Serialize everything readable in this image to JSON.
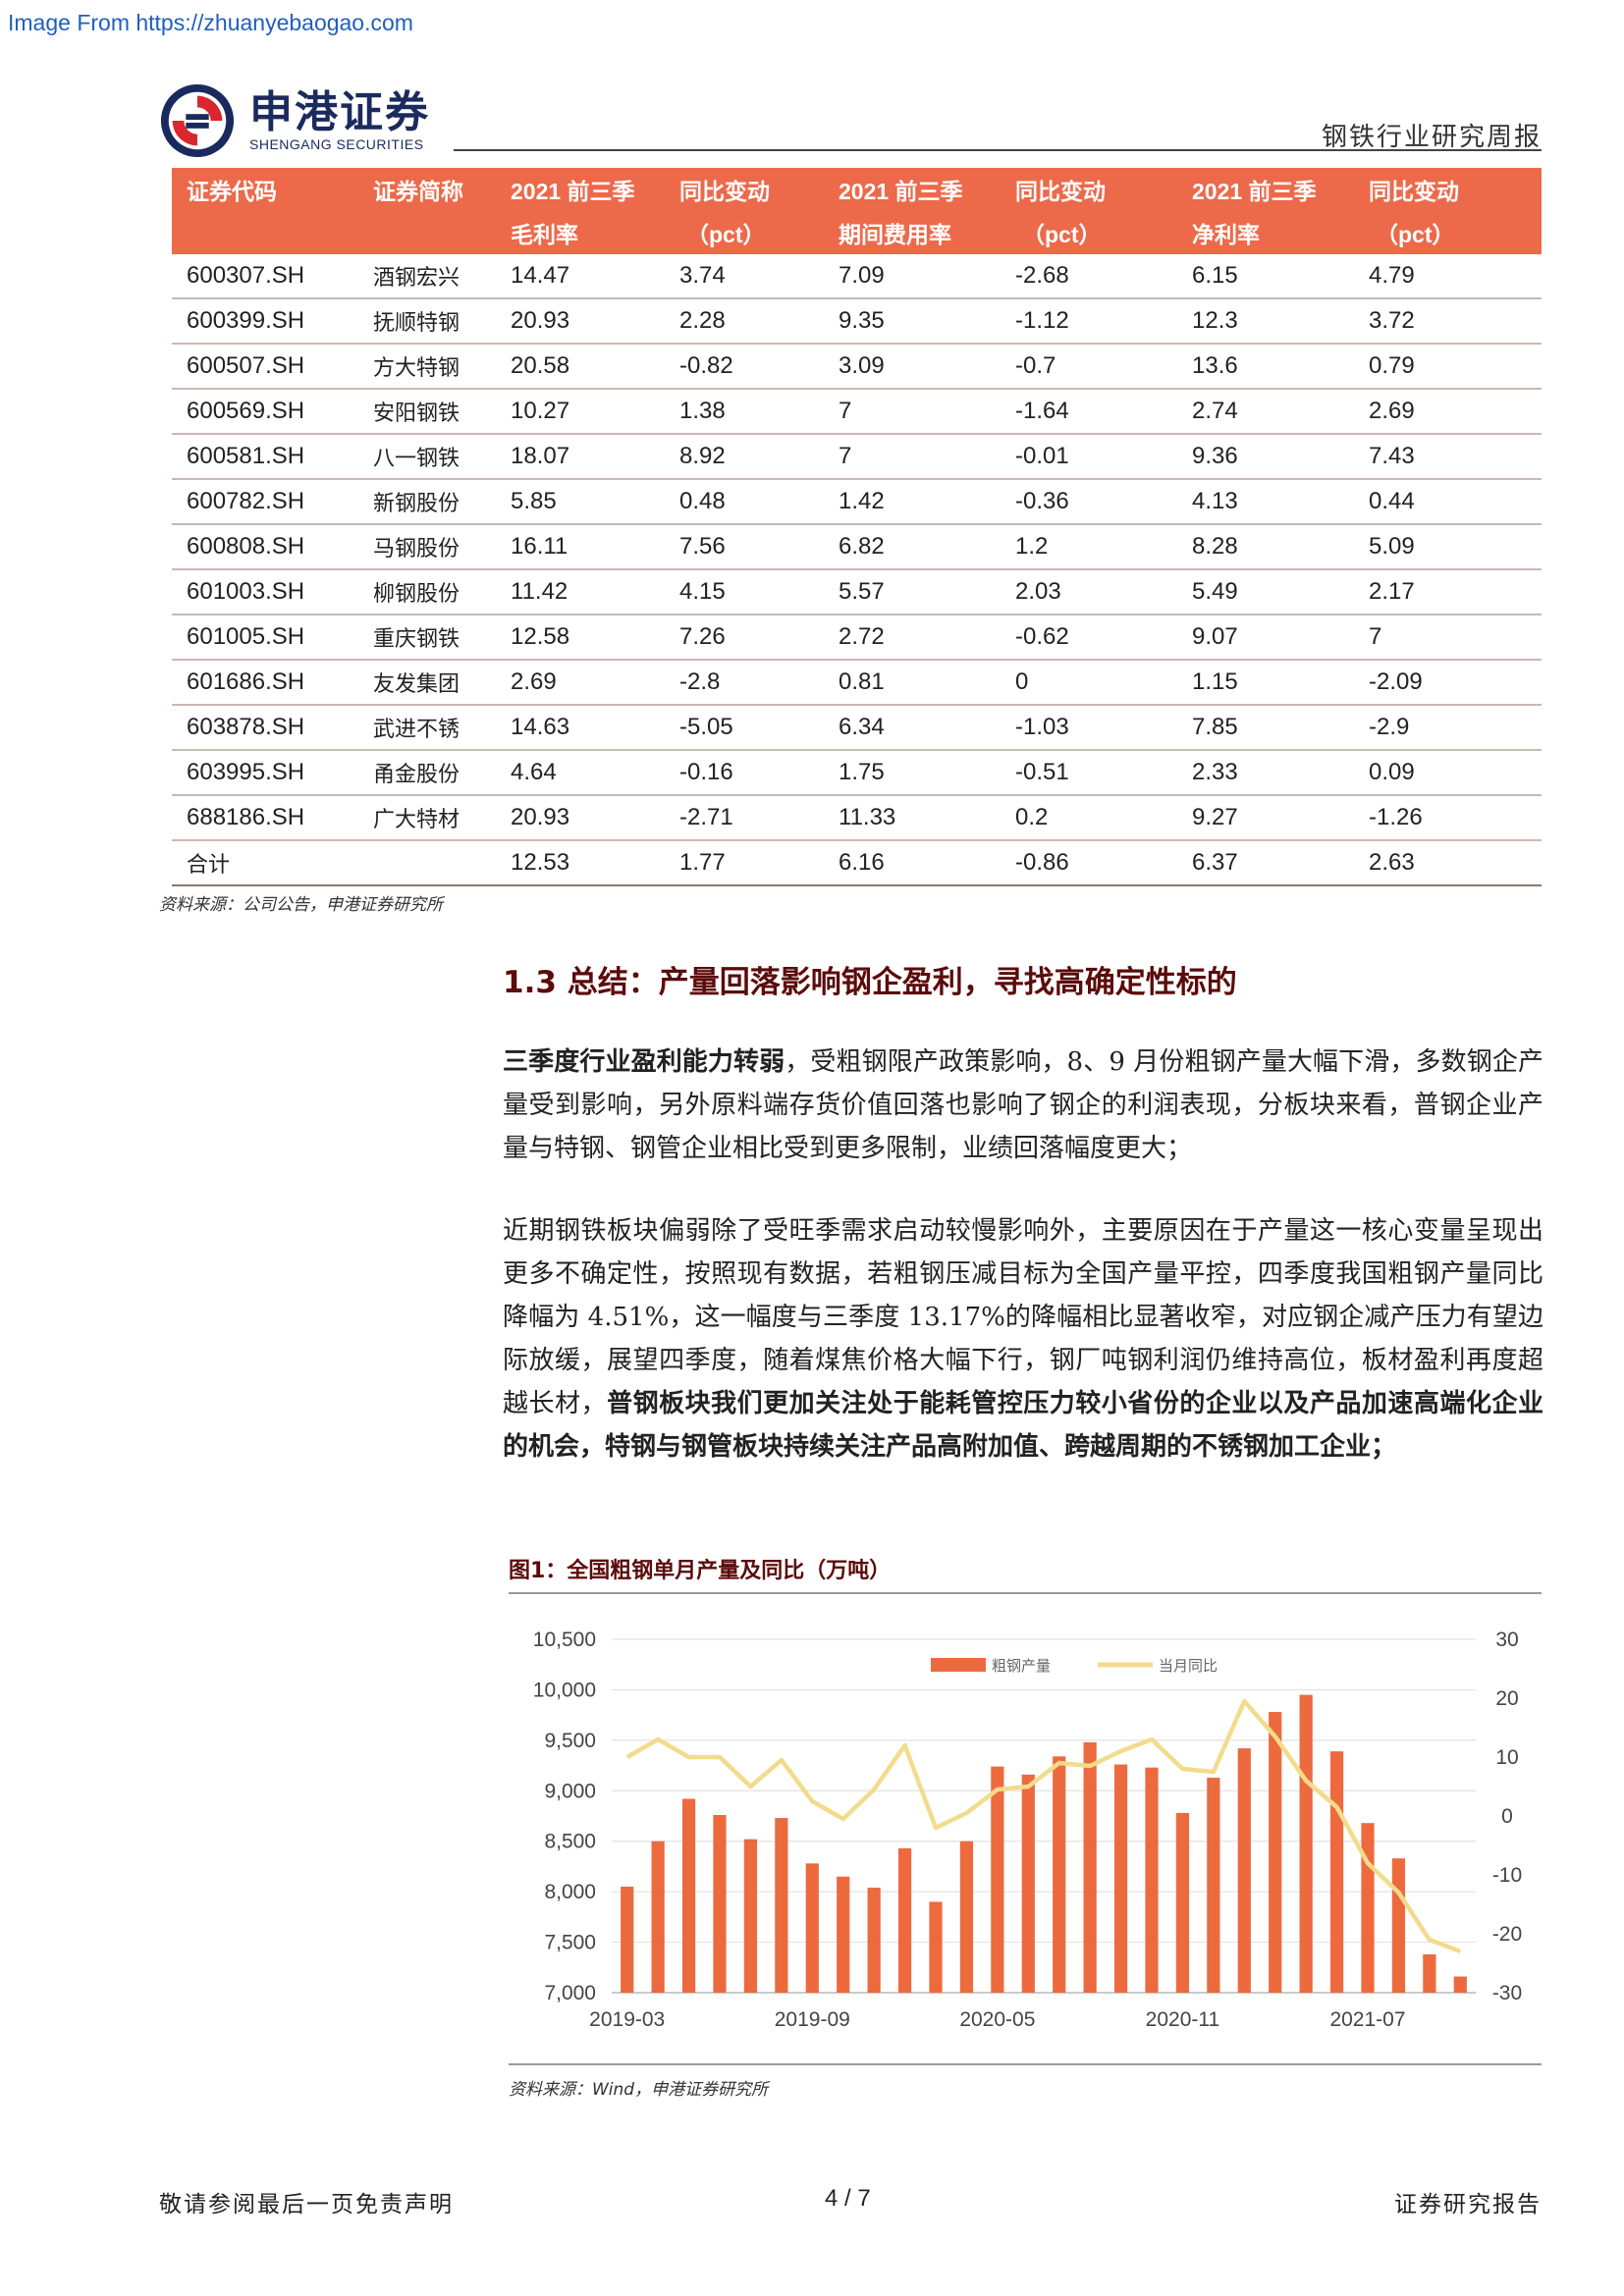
{
  "watermark": "Image From https://zhuanyebaogao.com",
  "header": {
    "brand_cn": "申港证券",
    "brand_en": "SHENGANG SECURITIES",
    "report_type": "钢铁行业研究周报"
  },
  "table": {
    "header_row1": [
      "证券代码",
      "证券简称",
      "2021 前三季",
      "同比变动",
      "2021 前三季",
      "同比变动",
      "2021 前三季",
      "同比变动"
    ],
    "header_row2": [
      "",
      "",
      "毛利率",
      "（pct）",
      "期间费用率",
      "（pct）",
      "净利率",
      "（pct）"
    ],
    "rows": [
      [
        "600307.SH",
        "酒钢宏兴",
        "14.47",
        "3.74",
        "7.09",
        "-2.68",
        "6.15",
        "4.79"
      ],
      [
        "600399.SH",
        "抚顺特钢",
        "20.93",
        "2.28",
        "9.35",
        "-1.12",
        "12.3",
        "3.72"
      ],
      [
        "600507.SH",
        "方大特钢",
        "20.58",
        "-0.82",
        "3.09",
        "-0.7",
        "13.6",
        "0.79"
      ],
      [
        "600569.SH",
        "安阳钢铁",
        "10.27",
        "1.38",
        "7",
        "-1.64",
        "2.74",
        "2.69"
      ],
      [
        "600581.SH",
        "八一钢铁",
        "18.07",
        "8.92",
        "7",
        "-0.01",
        "9.36",
        "7.43"
      ],
      [
        "600782.SH",
        "新钢股份",
        "5.85",
        "0.48",
        "1.42",
        "-0.36",
        "4.13",
        "0.44"
      ],
      [
        "600808.SH",
        "马钢股份",
        "16.11",
        "7.56",
        "6.82",
        "1.2",
        "8.28",
        "5.09"
      ],
      [
        "601003.SH",
        "柳钢股份",
        "11.42",
        "4.15",
        "5.57",
        "2.03",
        "5.49",
        "2.17"
      ],
      [
        "601005.SH",
        "重庆钢铁",
        "12.58",
        "7.26",
        "2.72",
        "-0.62",
        "9.07",
        "7"
      ],
      [
        "601686.SH",
        "友发集团",
        "2.69",
        "-2.8",
        "0.81",
        "0",
        "1.15",
        "-2.09"
      ],
      [
        "603878.SH",
        "武进不锈",
        "14.63",
        "-5.05",
        "6.34",
        "-1.03",
        "7.85",
        "-2.9"
      ],
      [
        "603995.SH",
        "甬金股份",
        "4.64",
        "-0.16",
        "1.75",
        "-0.51",
        "2.33",
        "0.09"
      ],
      [
        "688186.SH",
        "广大特材",
        "20.93",
        "-2.71",
        "11.33",
        "0.2",
        "9.27",
        "-1.26"
      ],
      [
        "合计",
        "",
        "12.53",
        "1.77",
        "6.16",
        "-0.86",
        "6.37",
        "2.63"
      ]
    ]
  },
  "table_source": "资料来源：公司公告，申港证券研究所",
  "section": {
    "title": "1.3 总结：产量回落影响钢企盈利，寻找高确定性标的",
    "p1_bold": "三季度行业盈利能力转弱",
    "p1_rest": "，受粗钢限产政策影响，8、9 月份粗钢产量大幅下滑，多数钢企产量受到影响，另外原料端存货价值回落也影响了钢企的利润表现，分板块来看，普钢企业产量与特钢、钢管企业相比受到更多限制，业绩回落幅度更大；",
    "p2_normal": "近期钢铁板块偏弱除了受旺季需求启动较慢影响外，主要原因在于产量这一核心变量呈现出更多不确定性，按照现有数据，若粗钢压减目标为全国产量平控，四季度我国粗钢产量同比降幅为 4.51%，这一幅度与三季度 13.17%的降幅相比显著收窄，对应钢企减产压力有望边际放缓，展望四季度，随着煤焦价格大幅下行，钢厂吨钢利润仍维持高位，板材盈利再度超越长材，",
    "p2_bold": "普钢板块我们更加关注处于能耗管控压力较小省份的企业以及产品加速高端化企业的机会，特钢与钢管板块持续关注产品高附加值、跨越周期的不锈钢加工企业；"
  },
  "figure": {
    "title": "图1：全国粗钢单月产量及同比（万吨）",
    "source": "资料来源：Wind，申港证券研究所"
  },
  "chart_data": {
    "type": "bar+line",
    "x": [
      "2019-03",
      "2019-04",
      "2019-05",
      "2019-06",
      "2019-07",
      "2019-08",
      "2019-09",
      "2019-10",
      "2019-11",
      "2019-12",
      "2020-03",
      "2020-04",
      "2020-05",
      "2020-06",
      "2020-07",
      "2020-08",
      "2020-09",
      "2020-10",
      "2020-11",
      "2020-12",
      "2021-03",
      "2021-04",
      "2021-05",
      "2021-06",
      "2021-07",
      "2021-08",
      "2021-09",
      "2021-10"
    ],
    "x_tick_labels": [
      "2019-03",
      "2019-09",
      "2020-05",
      "2020-11",
      "2021-07"
    ],
    "x_tick_indices": [
      0,
      6,
      12,
      18,
      24
    ],
    "series": [
      {
        "name": "粗钢产量",
        "type": "bar",
        "axis": "left",
        "color": "#ec6a3e",
        "values": [
          8050,
          8500,
          8920,
          8760,
          8520,
          8730,
          8280,
          8150,
          8040,
          8430,
          7900,
          8500,
          9240,
          9160,
          9340,
          9480,
          9260,
          9230,
          8780,
          9130,
          9420,
          9780,
          9950,
          9390,
          8680,
          8330,
          7380,
          7160
        ]
      },
      {
        "name": "当月同比",
        "type": "line",
        "axis": "right",
        "color": "#f2dc8c",
        "values": [
          10,
          13,
          10,
          10,
          5,
          9.5,
          2.5,
          -0.5,
          4.5,
          12,
          -2,
          0.5,
          4.5,
          5,
          9,
          8.5,
          11,
          13,
          8,
          7.5,
          19.5,
          13.5,
          6,
          1.5,
          -8,
          -13,
          -21,
          -23
        ]
      }
    ],
    "y_left": {
      "min": 7000,
      "max": 10500,
      "ticks": [
        "7,000",
        "7,500",
        "8,000",
        "8,500",
        "9,000",
        "9,500",
        "10,000",
        "10,500"
      ]
    },
    "y_right": {
      "min": -30,
      "max": 30,
      "ticks": [
        "-30",
        "-20",
        "-10",
        "0",
        "10",
        "20",
        "30"
      ]
    },
    "legend": "top-center",
    "grid": true
  },
  "footer": {
    "left": "敬请参阅最后一页免责声明",
    "center": "4 / 7",
    "right": "证券研究报告"
  }
}
